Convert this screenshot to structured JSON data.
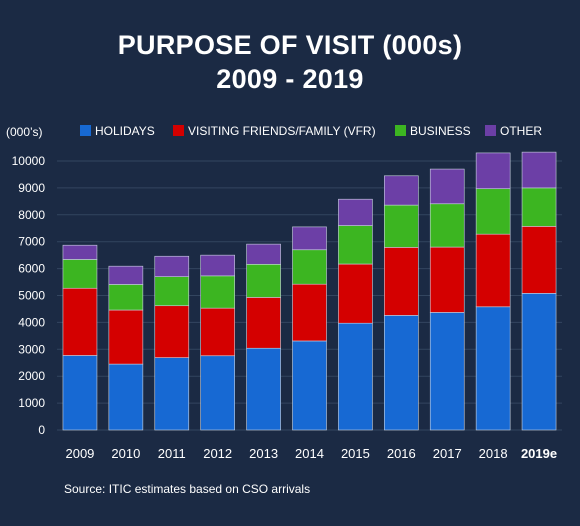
{
  "title_line1": "PURPOSE OF VISIT (000s)",
  "title_line2": "2009 - 2019",
  "source": "Source: ITIC estimates based on CSO arrivals",
  "colors": {
    "background": "#1b2a44",
    "gridline": "#33455f",
    "HOLIDAYS": "#1769d3",
    "VFR": "#d40000",
    "BUSINESS": "#3cb521",
    "OTHER": "#6c3fa6"
  },
  "chart_data": {
    "type": "bar",
    "stacked": true,
    "unit_label": "(000’s)",
    "categories": [
      "2009",
      "2010",
      "2011",
      "2012",
      "2013",
      "2014",
      "2015",
      "2016",
      "2017",
      "2018",
      "2019e"
    ],
    "ylim": [
      0,
      10000
    ],
    "yticks": [
      0,
      1000,
      2000,
      3000,
      4000,
      5000,
      6000,
      7000,
      8000,
      9000,
      10000
    ],
    "grid": true,
    "legend_position": "top",
    "series": [
      {
        "name": "HOLIDAYS",
        "color_key": "HOLIDAYS",
        "values": [
          2770,
          2450,
          2690,
          2760,
          3040,
          3310,
          3970,
          4260,
          4370,
          4580,
          5080
        ]
      },
      {
        "name": "VISITING FRIENDS/FAMILY (VFR)",
        "color_key": "VFR",
        "values": [
          2500,
          2010,
          1930,
          1770,
          1890,
          2110,
          2200,
          2530,
          2430,
          2700,
          2490
        ]
      },
      {
        "name": "BUSINESS",
        "color_key": "BUSINESS",
        "values": [
          1070,
          950,
          1080,
          1200,
          1230,
          1280,
          1430,
          1570,
          1610,
          1690,
          1430
        ]
      },
      {
        "name": "OTHER",
        "color_key": "OTHER",
        "values": [
          530,
          680,
          760,
          770,
          750,
          850,
          980,
          1090,
          1290,
          1330,
          1330
        ]
      }
    ]
  }
}
